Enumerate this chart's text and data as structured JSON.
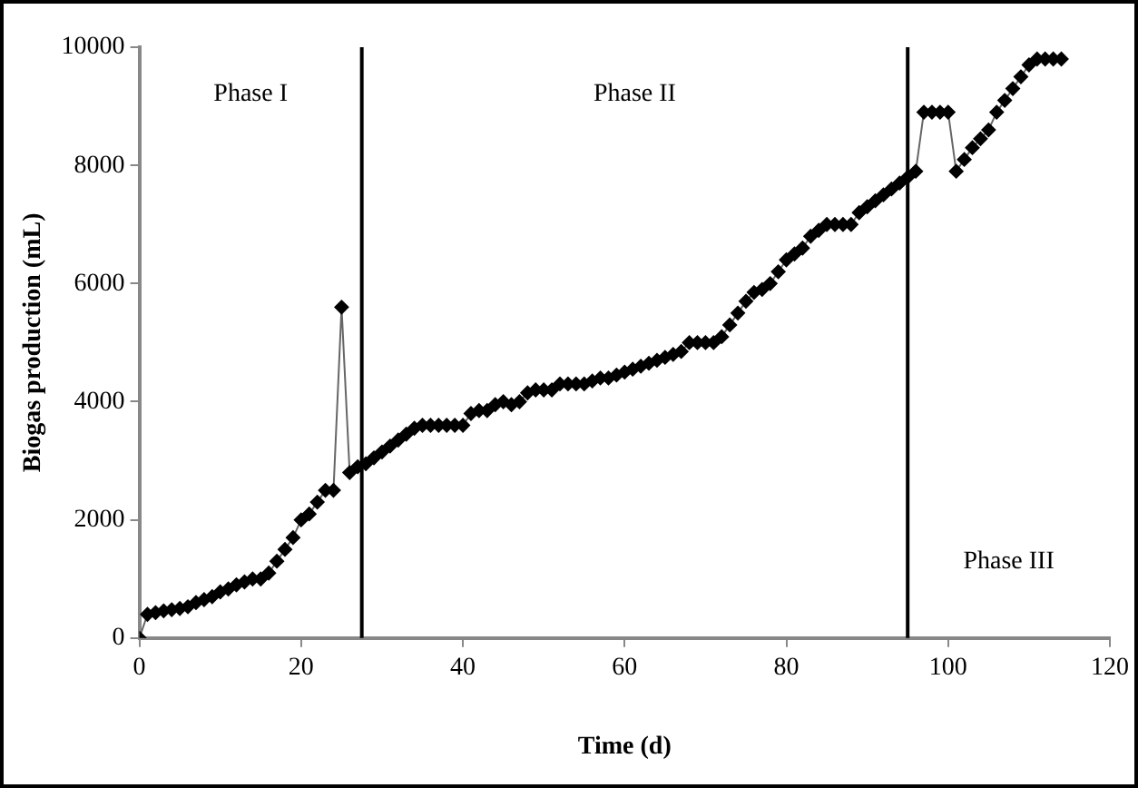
{
  "chart_data": {
    "type": "line",
    "xlabel": "Time (d)",
    "ylabel": "Biogas production (mL)",
    "x": [
      0,
      1,
      2,
      3,
      4,
      5,
      6,
      7,
      8,
      9,
      10,
      11,
      12,
      13,
      14,
      15,
      16,
      17,
      18,
      19,
      20,
      21,
      22,
      23,
      24,
      25,
      26,
      27,
      28,
      29,
      30,
      31,
      32,
      33,
      34,
      35,
      36,
      37,
      38,
      39,
      40,
      41,
      42,
      43,
      44,
      45,
      46,
      47,
      48,
      49,
      50,
      51,
      52,
      53,
      54,
      55,
      56,
      57,
      58,
      59,
      60,
      61,
      62,
      63,
      64,
      65,
      66,
      67,
      68,
      69,
      70,
      71,
      72,
      73,
      74,
      75,
      76,
      77,
      78,
      79,
      80,
      81,
      82,
      83,
      84,
      85,
      86,
      87,
      88,
      89,
      90,
      91,
      92,
      93,
      94,
      95,
      96,
      97,
      98,
      99,
      100,
      101,
      102,
      103,
      104,
      105,
      106,
      107,
      108,
      109,
      110,
      111,
      112,
      113,
      114
    ],
    "series": [
      {
        "color": "#000000",
        "values": [
          0,
          400,
          430,
          460,
          480,
          500,
          530,
          600,
          650,
          700,
          780,
          830,
          900,
          950,
          1000,
          1000,
          1100,
          1300,
          1500,
          1700,
          2000,
          2100,
          2300,
          2500,
          2500,
          5600,
          2800,
          2900,
          2950,
          3050,
          3150,
          3250,
          3350,
          3450,
          3550,
          3600,
          3600,
          3600,
          3600,
          3600,
          3600,
          3800,
          3850,
          3850,
          3950,
          4000,
          3950,
          4000,
          4150,
          4200,
          4200,
          4200,
          4300,
          4300,
          4300,
          4300,
          4350,
          4400,
          4400,
          4450,
          4500,
          4550,
          4600,
          4650,
          4700,
          4750,
          4800,
          4850,
          5000,
          5000,
          5000,
          5000,
          5100,
          5300,
          5500,
          5700,
          5850,
          5900,
          6000,
          6200,
          6400,
          6500,
          6600,
          6800,
          6900,
          7000,
          7000,
          7000,
          7000,
          7200,
          7300,
          7400,
          7500,
          7600,
          7700,
          7800,
          7900,
          8900,
          8900,
          8900,
          8900,
          7900,
          8100,
          8300,
          8450,
          8600,
          8900,
          9100,
          9300,
          9500,
          9700,
          9800,
          9800,
          9800,
          9800
        ]
      }
    ],
    "xlim": [
      0,
      120
    ],
    "xticks": [
      0,
      20,
      40,
      60,
      80,
      100,
      120
    ],
    "ylim": [
      0,
      10000
    ],
    "yticks": [
      0,
      2000,
      4000,
      6000,
      8000,
      10000
    ],
    "grid": false,
    "legend": false,
    "marker": "diamond",
    "line_style": "solid",
    "ref_lines": [
      {
        "axis": "x",
        "value": 27.5,
        "color": "#000000"
      },
      {
        "axis": "x",
        "value": 95,
        "color": "#000000"
      }
    ],
    "annotations": [
      "Phase I",
      "Phase II",
      "Phase III"
    ]
  }
}
